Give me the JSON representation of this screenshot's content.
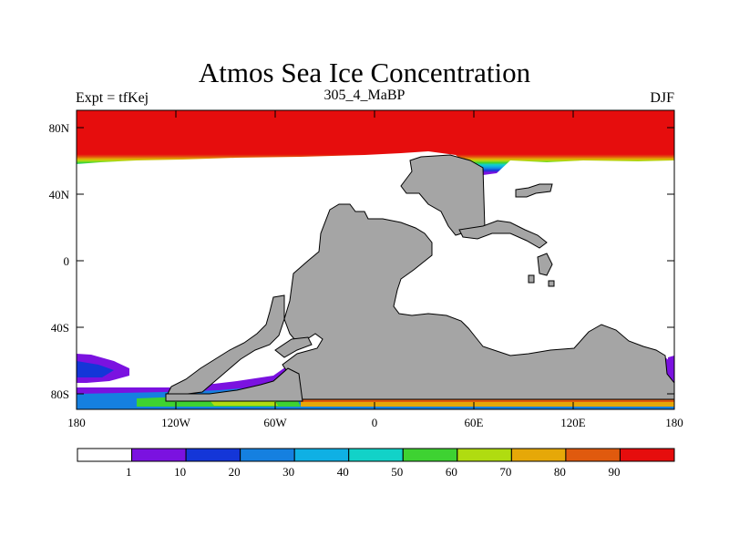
{
  "title": "Atmos Sea Ice Concentration",
  "subtitle_left": "Expt = tfKej",
  "subtitle_center": "305_4_MaBP",
  "subtitle_right": "DJF",
  "lat_labels": [
    "80N",
    "40N",
    "0",
    "40S",
    "80S"
  ],
  "lon_labels": [
    "180",
    "120W",
    "60W",
    "0",
    "60E",
    "120E",
    "180"
  ],
  "colorbar": {
    "colors": [
      "#ffffff",
      "#7b12e0",
      "#1436d8",
      "#1580e0",
      "#0fb0e4",
      "#12d2c8",
      "#3ed232",
      "#b0dc10",
      "#e6a808",
      "#e05a0e",
      "#e60d0d"
    ],
    "labels": [
      "1",
      "10",
      "20",
      "30",
      "40",
      "50",
      "60",
      "70",
      "80",
      "90"
    ]
  },
  "colors": {
    "land": "#a5a5a5",
    "ocean": "#ffffff",
    "ice_high": "#e60d0d"
  }
}
